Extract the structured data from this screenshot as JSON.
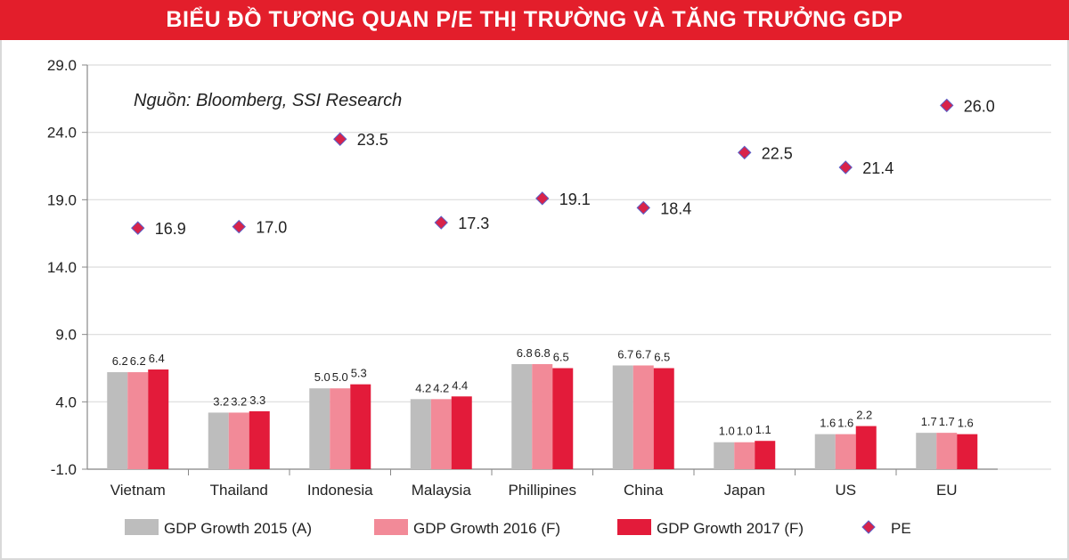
{
  "header": {
    "title": "BIỂU ĐỒ TƯƠNG QUAN P/E THỊ TRƯỜNG VÀ TĂNG TRƯỞNG GDP"
  },
  "chart_data": {
    "type": "bar",
    "title": "BIỂU ĐỒ TƯƠNG QUAN P/E THỊ TRƯỜNG VÀ TĂNG TRƯỞNG GDP",
    "annotation": "Nguồn: Bloomberg, SSI Research",
    "categories": [
      "Vietnam",
      "Thailand",
      "Indonesia",
      "Malaysia",
      "Phillipines",
      "China",
      "Japan",
      "US",
      "EU"
    ],
    "ylim": [
      -1.0,
      29.0
    ],
    "yticks": [
      "29.0",
      "24.0",
      "19.0",
      "14.0",
      "9.0",
      "4.0",
      "-1.0"
    ],
    "grid": true,
    "legend_placement": "bottom",
    "series": [
      {
        "name": "GDP Growth 2015 (A)",
        "type": "bar",
        "color": "#bdbdbd",
        "values": [
          6.2,
          3.2,
          5.0,
          4.2,
          6.8,
          6.7,
          1.0,
          1.6,
          1.7
        ],
        "labels": [
          "6.2",
          "3.2",
          "5.0",
          "4.2",
          "6.8",
          "6.7",
          "1.0",
          "1.6",
          "1.7"
        ]
      },
      {
        "name": "GDP Growth 2016 (F)",
        "type": "bar",
        "color": "#f28a98",
        "values": [
          6.2,
          3.2,
          5.0,
          4.2,
          6.8,
          6.7,
          1.0,
          1.6,
          1.7
        ],
        "labels": [
          "6.2",
          "3.2",
          "5.0",
          "4.2",
          "6.8",
          "6.7",
          "1.0",
          "1.6",
          "1.7"
        ]
      },
      {
        "name": "GDP Growth 2017 (F)",
        "type": "bar",
        "color": "#e31b3a",
        "values": [
          6.4,
          3.3,
          5.3,
          4.4,
          6.5,
          6.5,
          1.1,
          2.2,
          1.6
        ],
        "labels": [
          "6.4",
          "3.3",
          "5.3",
          "4.4",
          "6.5",
          "6.5",
          "1.1",
          "2.2",
          "1.6"
        ]
      },
      {
        "name": "PE",
        "type": "scatter",
        "color": "#d8234a",
        "edge": "#5b5fc7",
        "values": [
          16.9,
          17.0,
          23.5,
          17.3,
          19.1,
          18.4,
          22.5,
          21.4,
          26.0
        ],
        "labels": [
          "16.9",
          "17.0",
          "23.5",
          "17.3",
          "19.1",
          "18.4",
          "22.5",
          "21.4",
          "26.0"
        ]
      }
    ]
  }
}
